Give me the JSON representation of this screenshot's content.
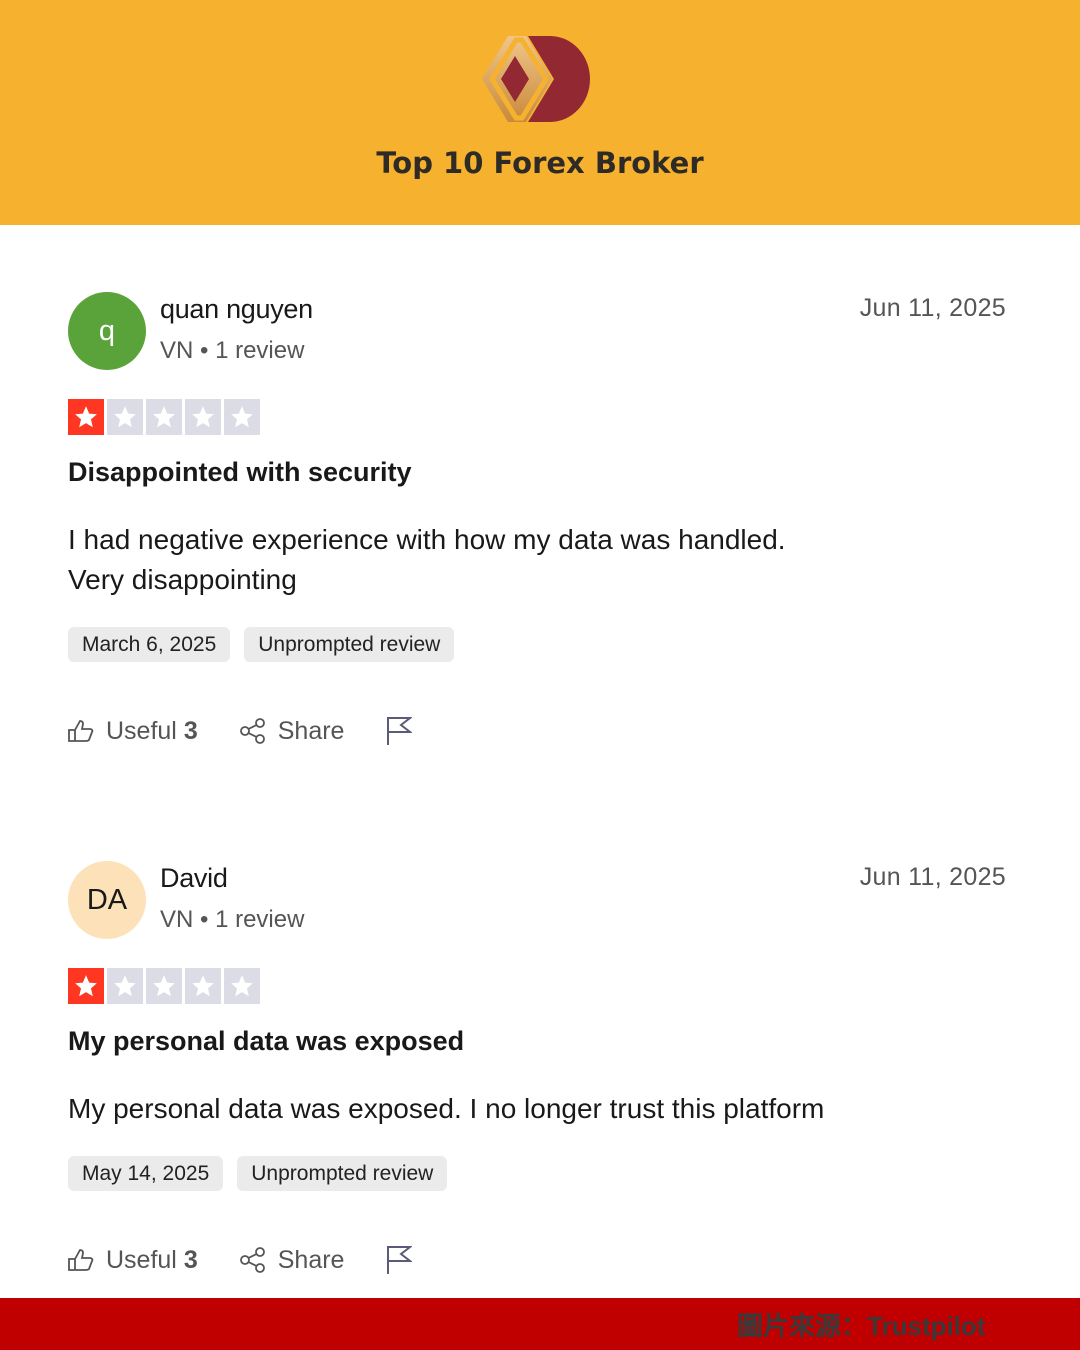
{
  "header": {
    "brand": "Top 10 Forex Broker",
    "bg_color": "#f6b22e",
    "logo_icon": "diamond-d-logo"
  },
  "reviews": [
    {
      "initial": "q",
      "avatar_color": "#5aa33a",
      "avatar_text_color": "#ffffff",
      "name": "quan nguyen",
      "meta": "VN • 1 review",
      "date": "Jun 11, 2025",
      "rating": 1,
      "max_rating": 5,
      "title": "Disappointed with security",
      "body_lines": [
        "I had negative experience with how my data was handled.",
        "Very disappointing"
      ],
      "tags": [
        "March 6, 2025",
        "Unprompted review"
      ],
      "useful_label": "Useful",
      "useful_count": "3",
      "share_label": "Share"
    },
    {
      "initial": "DA",
      "avatar_color": "#fde1b8",
      "avatar_text_color": "#191919",
      "name": "David",
      "meta": "VN • 1 review",
      "date": "Jun 11, 2025",
      "rating": 1,
      "max_rating": 5,
      "title": "My personal data was exposed",
      "body_lines": [
        "My personal data was exposed. I no longer trust this platform"
      ],
      "tags": [
        "May 14, 2025",
        "Unprompted review"
      ],
      "useful_label": "Useful",
      "useful_count": "3",
      "share_label": "Share"
    }
  ],
  "footer": {
    "credit": "圖片來源：Trustpilot",
    "bg_color": "#c00000"
  },
  "colors": {
    "star_on": "#ff3722",
    "star_off": "#dcdce6"
  }
}
